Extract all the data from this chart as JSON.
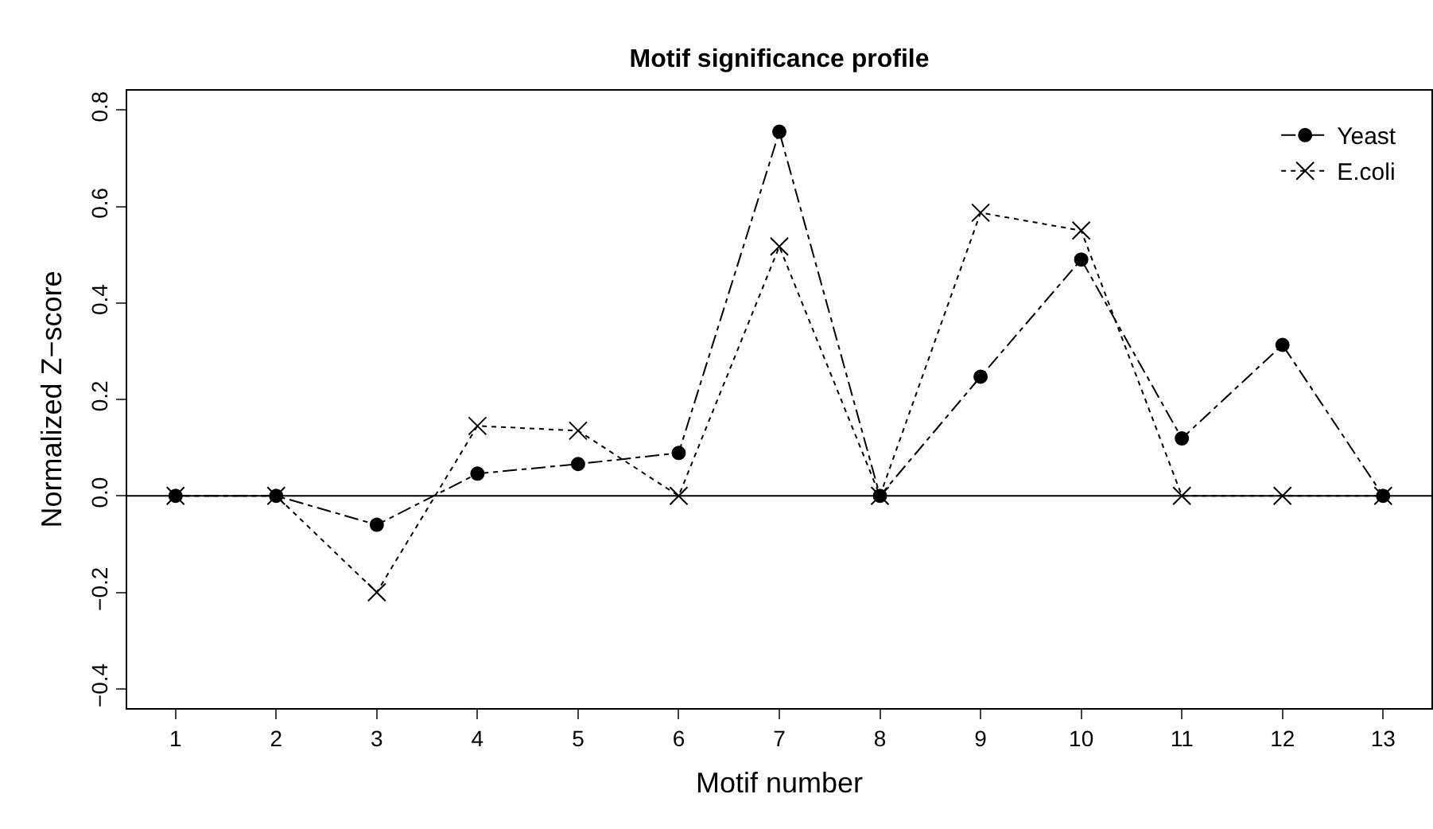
{
  "chart_data": {
    "type": "line",
    "title": "Motif significance profile",
    "xlabel": "Motif number",
    "ylabel": "Normalized Z−score",
    "x": [
      1,
      2,
      3,
      4,
      5,
      6,
      7,
      8,
      9,
      10,
      11,
      12,
      13
    ],
    "series": [
      {
        "name": "Yeast",
        "color": "#000000",
        "marker": "circle",
        "line_style": "dashdot",
        "values": [
          0,
          0,
          -0.06,
          0.046,
          0.066,
          0.089,
          0.755,
          0,
          0.247,
          0.49,
          0.119,
          0.313,
          0
        ]
      },
      {
        "name": "E.coli",
        "color": "#000000",
        "marker": "cross",
        "line_style": "dotted",
        "values": [
          0,
          0,
          -0.2,
          0.145,
          0.135,
          0,
          0.517,
          0,
          0.587,
          0.55,
          0,
          0,
          0
        ]
      }
    ],
    "xlim": [
      0.52,
      13.48
    ],
    "xticks": [
      1,
      2,
      3,
      4,
      5,
      6,
      7,
      8,
      9,
      10,
      11,
      12,
      13
    ],
    "ylim": [
      -0.44,
      0.84
    ],
    "yticks": [
      {
        "value": -0.4,
        "label": "−0.4"
      },
      {
        "value": -0.2,
        "label": "−0.2"
      },
      {
        "value": 0,
        "label": "0.0"
      },
      {
        "value": 0.2,
        "label": "0.2"
      },
      {
        "value": 0.4,
        "label": "0.4"
      },
      {
        "value": 0.6,
        "label": "0.6"
      },
      {
        "value": 0.8,
        "label": "0.8"
      }
    ],
    "ref_lines": [
      {
        "axis": "y",
        "value": 0,
        "color": "#000000",
        "line_style": "solid"
      }
    ],
    "grid": false,
    "legend": "top right"
  }
}
